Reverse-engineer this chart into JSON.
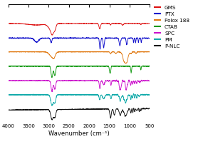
{
  "title": "",
  "xlabel": "Wavenumber (cm⁻¹)",
  "xlim": [
    4000,
    500
  ],
  "legend_entries": [
    "GMS",
    "PTX",
    "Polox 188",
    "CTAB",
    "SPC",
    "PM",
    "P-NLC"
  ],
  "colors": [
    "#dd1111",
    "#1111cc",
    "#e07810",
    "#119911",
    "#cc11cc",
    "#11aaaa",
    "#111111"
  ],
  "xticks": [
    4000,
    3500,
    3000,
    2500,
    2000,
    1500,
    1000,
    500
  ],
  "background_color": "#ffffff",
  "figsize": [
    2.92,
    2.09
  ],
  "dpi": 100
}
